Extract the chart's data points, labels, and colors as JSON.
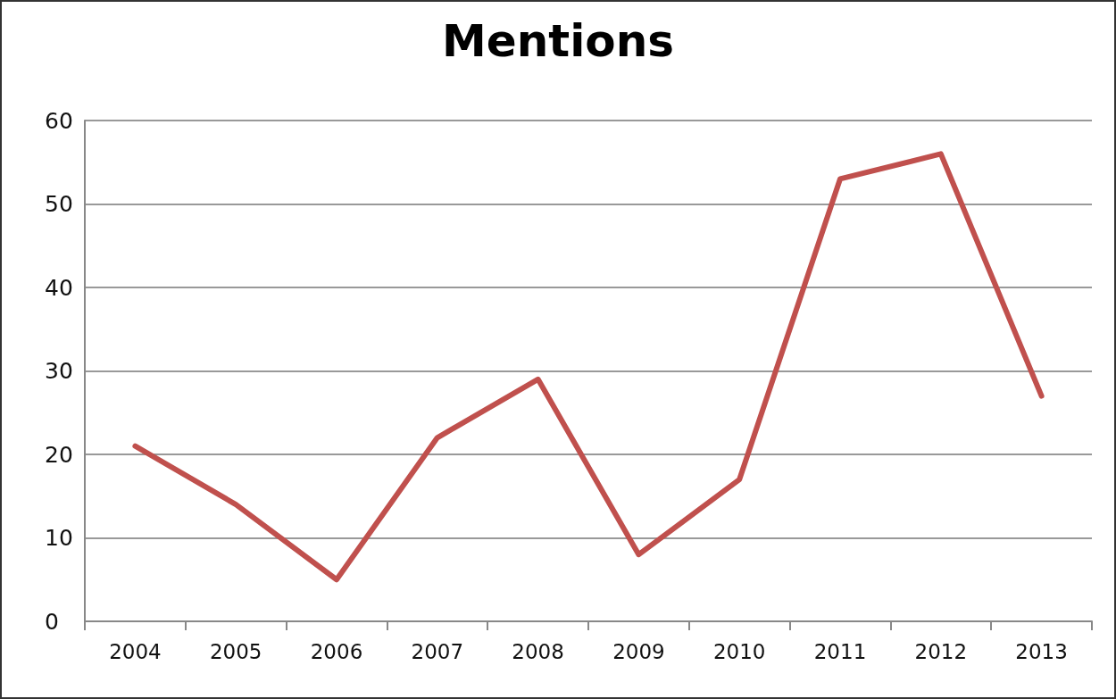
{
  "chart_data": {
    "type": "line",
    "title": "Mentions",
    "categories": [
      "2004",
      "2005",
      "2006",
      "2007",
      "2008",
      "2009",
      "2010",
      "2011",
      "2012",
      "2013"
    ],
    "series": [
      {
        "color": "#c0504d",
        "values": [
          21,
          14,
          5,
          22,
          29,
          8,
          17,
          53,
          56,
          27
        ]
      }
    ],
    "ylim": [
      0,
      60
    ],
    "yticks": [
      0,
      10,
      20,
      30,
      40,
      50,
      60
    ],
    "grid": "y",
    "marker": "none",
    "line_style": "solid"
  }
}
